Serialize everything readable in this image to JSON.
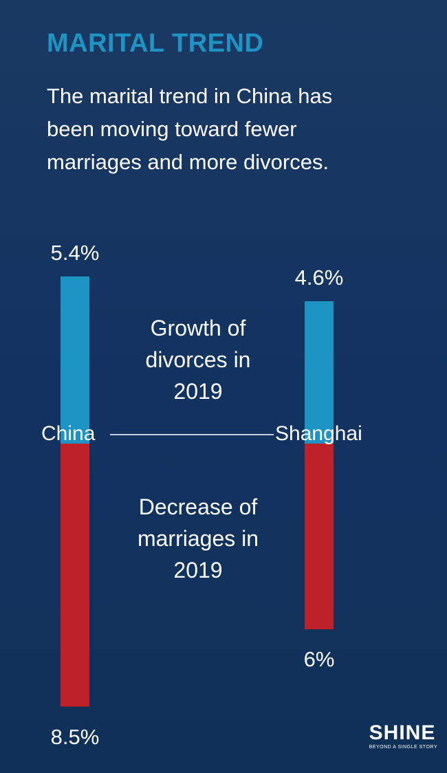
{
  "chart_data": {
    "type": "diverging-bar",
    "title": "MARITAL TREND",
    "subtitle": "The marital trend in China has been moving toward fewer marriages and more divorces.",
    "categories": [
      "China",
      "Shanghai"
    ],
    "series": [
      {
        "name": "Growth of divorces in 2019",
        "color": "#1e94c4",
        "direction": "up",
        "values": [
          5.4,
          4.6
        ],
        "value_labels": [
          "5.4%",
          "4.6%"
        ]
      },
      {
        "name": "Decrease of marriages in 2019",
        "color": "#bf2128",
        "direction": "down",
        "values": [
          8.5,
          6
        ],
        "value_labels": [
          "8.5%",
          "6%"
        ]
      }
    ]
  },
  "logo": {
    "name": "SHINE",
    "tagline": "BEYOND A SINGLE STORY"
  }
}
